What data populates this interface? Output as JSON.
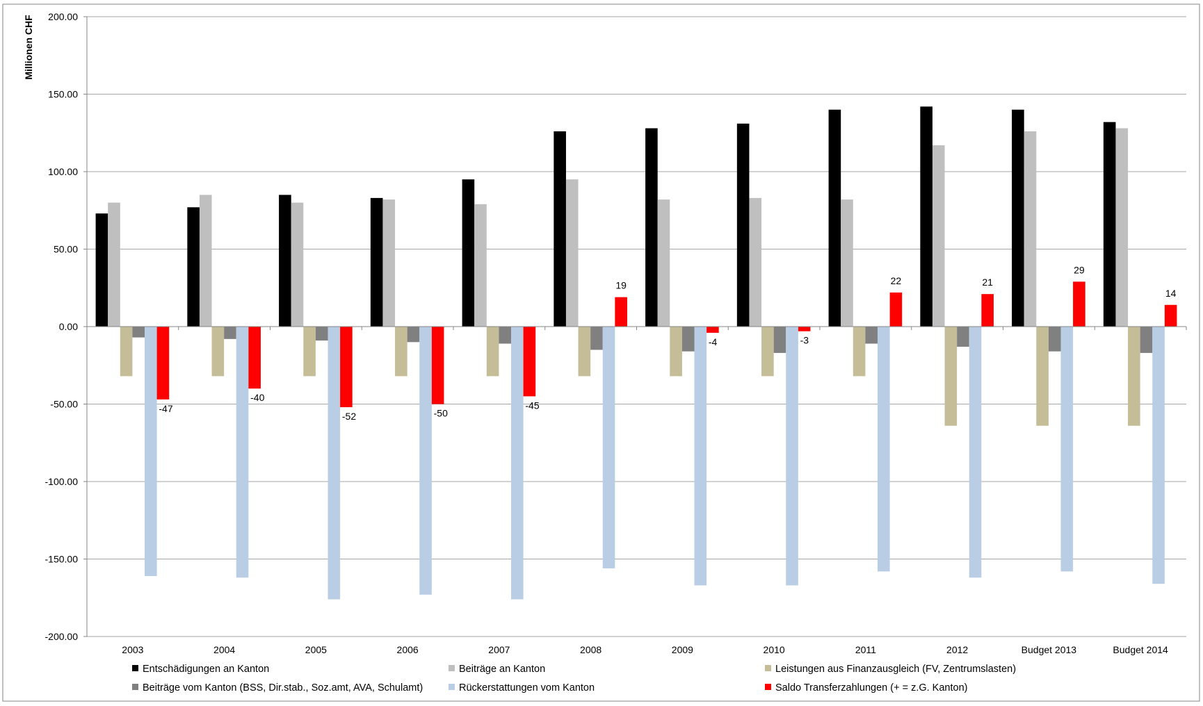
{
  "chart_data": {
    "type": "bar",
    "title": "",
    "xlabel": "",
    "ylabel": "Millionen CHF",
    "ylim": [
      -200,
      200
    ],
    "ytick_step": 50,
    "ytick_labels": [
      "-200.00",
      "-150.00",
      "-100.00",
      "-50.00",
      "0.00",
      "50.00",
      "100.00",
      "150.00",
      "200.00"
    ],
    "grid": true,
    "legend_position": "bottom",
    "categories": [
      "2003",
      "2004",
      "2005",
      "2006",
      "2007",
      "2008",
      "2009",
      "2010",
      "2011",
      "2012",
      "Budget 2013",
      "Budget 2014"
    ],
    "series": [
      {
        "name": "Entschädigungen an Kanton",
        "color": "#000000",
        "values": [
          73,
          77,
          85,
          83,
          95,
          126,
          128,
          131,
          140,
          142,
          140,
          132
        ]
      },
      {
        "name": "Beiträge an Kanton",
        "color": "#bfbfbf",
        "values": [
          80,
          85,
          80,
          82,
          79,
          95,
          82,
          83,
          82,
          117,
          126,
          128
        ]
      },
      {
        "name": "Leistungen aus Finanzausgleich (FV, Zentrumslasten)",
        "color": "#c4bd97",
        "values": [
          -32,
          -32,
          -32,
          -32,
          -32,
          -32,
          -32,
          -32,
          -32,
          -64,
          -64,
          -64
        ]
      },
      {
        "name": "Beiträge vom Kanton (BSS, Dir.stab., Soz.amt, AVA, Schulamt)",
        "color": "#808080",
        "values": [
          -7,
          -8,
          -9,
          -10,
          -11,
          -15,
          -16,
          -17,
          -11,
          -13,
          -16,
          -17
        ]
      },
      {
        "name": "Rückerstattungen vom Kanton",
        "color": "#b9cde5",
        "values": [
          -161,
          -162,
          -176,
          -173,
          -176,
          -156,
          -167,
          -167,
          -158,
          -162,
          -158,
          -166
        ]
      },
      {
        "name": "Saldo Transferzahlungen (+ = z.G. Kanton)",
        "color": "#ff0000",
        "values": [
          -47,
          -40,
          -52,
          -50,
          -45,
          19,
          -4,
          -3,
          22,
          21,
          29,
          14
        ],
        "data_labels": [
          "-47",
          "-40",
          "-52",
          "-50",
          "-45",
          "19",
          "-4",
          "-3",
          "22",
          "21",
          "29",
          "14"
        ]
      }
    ]
  }
}
